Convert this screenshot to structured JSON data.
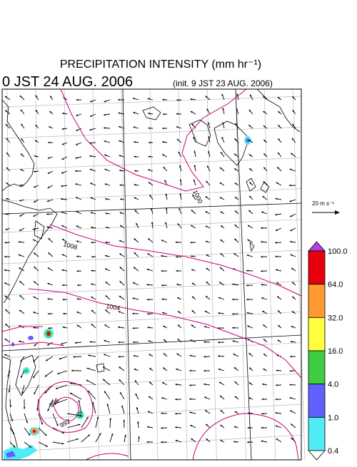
{
  "header": {
    "title": "PRECIPITATION INTENSITY (mm hr⁻¹)",
    "valid_time": "0 JST 24 AUG. 2006",
    "init_time": "(init. 9 JST 23 AUG. 2006)"
  },
  "map": {
    "isobar_labels": [
      "1000",
      "1008",
      "1004",
      "996",
      "992"
    ]
  },
  "vector_reference": {
    "label": "20 m s⁻¹"
  },
  "colorbar": {
    "labels": [
      "100.0",
      "64.0",
      "32.0",
      "16.0",
      "4.0",
      "1.0",
      "0.4"
    ],
    "colors": [
      "#e8000b",
      "#ff9933",
      "#ffff40",
      "#40cc40",
      "#6060ff",
      "#50ecf5"
    ],
    "over_color": "#b040e0",
    "under_color": "#ffffff"
  }
}
